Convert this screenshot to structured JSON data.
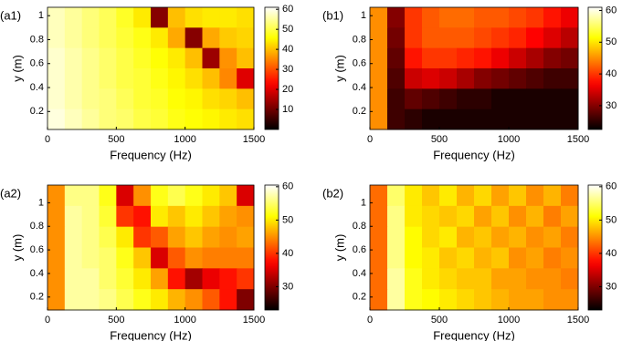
{
  "chart_data": [
    {
      "type": "heatmap",
      "label": "(a1)",
      "xlabel": "Frequency (Hz)",
      "ylabel": "y (m)",
      "xlim": [
        0,
        1500
      ],
      "xticks": [
        0,
        500,
        1000,
        1500
      ],
      "ylim": [
        0.05,
        1.07
      ],
      "yticks": [
        0.2,
        0.4,
        0.6,
        0.8,
        1
      ],
      "colormap": "hot",
      "clim": [
        0,
        61
      ],
      "cticks": [
        10,
        20,
        30,
        40,
        50,
        60
      ],
      "z": [
        [
          57,
          55,
          53,
          51,
          48,
          44,
          12,
          40,
          43,
          44,
          44,
          43
        ],
        [
          57,
          55,
          53,
          51,
          49,
          47,
          44,
          38,
          12,
          38,
          41,
          42
        ],
        [
          58,
          56,
          54,
          52,
          50,
          48,
          46,
          44,
          40,
          14,
          36,
          40
        ],
        [
          58,
          56,
          54,
          52,
          50,
          49,
          47,
          45,
          43,
          40,
          35,
          20
        ],
        [
          58,
          56,
          54,
          53,
          51,
          49,
          48,
          46,
          45,
          43,
          42,
          40
        ],
        [
          59,
          57,
          55,
          53,
          52,
          50,
          49,
          47,
          46,
          45,
          44,
          43
        ]
      ]
    },
    {
      "type": "heatmap",
      "label": "(b1)",
      "xlabel": "Frequency (Hz)",
      "ylabel": "y (m)",
      "xlim": [
        0,
        1500
      ],
      "xticks": [
        0,
        500,
        1000,
        1500
      ],
      "ylim": [
        0.05,
        1.07
      ],
      "yticks": [
        0.2,
        0.4,
        0.6,
        0.8,
        1
      ],
      "colormap": "hot",
      "clim": [
        22.5,
        61
      ],
      "cticks": [
        30,
        40,
        50,
        60
      ],
      "z": [
        [
          45,
          30,
          40,
          42,
          43,
          43,
          42,
          42,
          41,
          40,
          38,
          36
        ],
        [
          45,
          29,
          40,
          42,
          42,
          42,
          41,
          40,
          39,
          37,
          35,
          33
        ],
        [
          45,
          28,
          38,
          40,
          40,
          39,
          38,
          36,
          34,
          32,
          30,
          29
        ],
        [
          45,
          27,
          34,
          35,
          34,
          32,
          30,
          29,
          28,
          27,
          26,
          26
        ],
        [
          45,
          26,
          28,
          27,
          26,
          25,
          25,
          24,
          24,
          24,
          24,
          24
        ],
        [
          45,
          26,
          25,
          24,
          24,
          24,
          24,
          24,
          24,
          24,
          24,
          24
        ]
      ]
    },
    {
      "type": "heatmap",
      "label": "(a2)",
      "xlabel": "Frequency (Hz)",
      "ylabel": "y (m)",
      "xlim": [
        0,
        1500
      ],
      "xticks": [
        0,
        500,
        1000,
        1500
      ],
      "ylim": [
        0.09,
        1.15
      ],
      "yticks": [
        0.2,
        0.4,
        0.6,
        0.8,
        1
      ],
      "colormap": "hot",
      "clim": [
        23,
        60.5
      ],
      "cticks": [
        30,
        40,
        50,
        60
      ],
      "z": [
        [
          45,
          56,
          56,
          52,
          35,
          45,
          52,
          54,
          52,
          50,
          48,
          35
        ],
        [
          45,
          57,
          56,
          53,
          40,
          38,
          50,
          48,
          50,
          48,
          46,
          45
        ],
        [
          45,
          57,
          56,
          54,
          50,
          40,
          42,
          46,
          48,
          46,
          45,
          46
        ],
        [
          45,
          57,
          56,
          55,
          52,
          48,
          35,
          42,
          45,
          44,
          44,
          44
        ],
        [
          45,
          57,
          57,
          55,
          53,
          50,
          46,
          38,
          32,
          36,
          38,
          40
        ],
        [
          45,
          57,
          57,
          56,
          54,
          52,
          50,
          47,
          45,
          42,
          38,
          30
        ]
      ]
    },
    {
      "type": "heatmap",
      "label": "(b2)",
      "xlabel": "Frequency (Hz)",
      "ylabel": "y (m)",
      "xlim": [
        0,
        1500
      ],
      "xticks": [
        0,
        500,
        1000,
        1500
      ],
      "ylim": [
        0.09,
        1.15
      ],
      "yticks": [
        0.2,
        0.4,
        0.6,
        0.8,
        1
      ],
      "colormap": "hot",
      "clim": [
        23,
        60.5
      ],
      "cticks": [
        30,
        40,
        50,
        60
      ],
      "z": [
        [
          43,
          55,
          50,
          48,
          50,
          47,
          49,
          46,
          48,
          45,
          47,
          44
        ],
        [
          43,
          56,
          50,
          49,
          48,
          49,
          46,
          48,
          45,
          47,
          44,
          46
        ],
        [
          43,
          56,
          51,
          49,
          50,
          47,
          48,
          46,
          47,
          45,
          46,
          44
        ],
        [
          43,
          56,
          51,
          50,
          48,
          49,
          47,
          48,
          45,
          46,
          44,
          45
        ],
        [
          43,
          57,
          52,
          50,
          49,
          48,
          48,
          46,
          46,
          45,
          45,
          44
        ],
        [
          43,
          57,
          52,
          51,
          50,
          49,
          48,
          47,
          46,
          46,
          45,
          45
        ]
      ]
    }
  ]
}
